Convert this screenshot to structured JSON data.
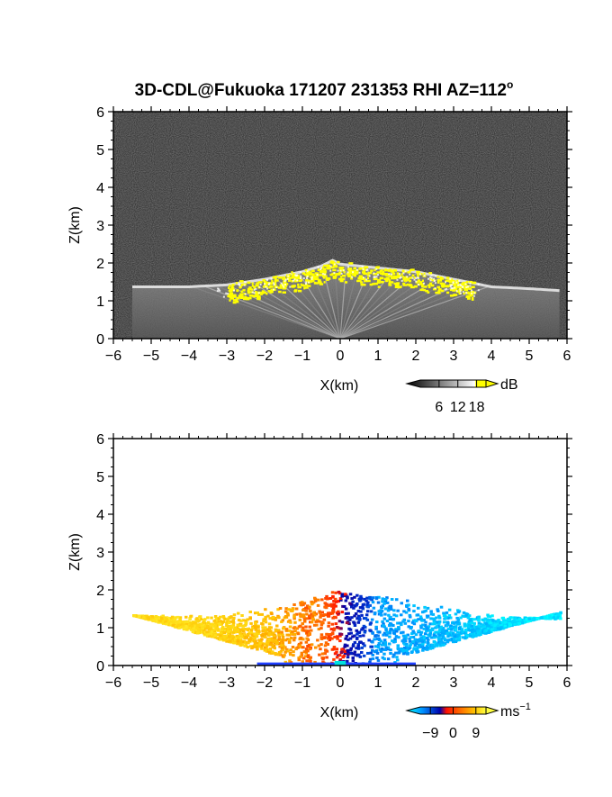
{
  "figure_title": "3D-CDL@Fukuoka 171207 231353 RHI AZ=112",
  "figure_title_sup": "o",
  "colors": {
    "background": "#ffffff",
    "echo_highlight": "#ffff00",
    "radial_positive": "#ffd21a",
    "radial_negative": "#1a4cff"
  },
  "chart_data": [
    {
      "type": "heatmap",
      "panel": "reflectivity",
      "xlabel": "X(km)",
      "ylabel": "Z(km)",
      "xlim": [
        -6,
        6
      ],
      "ylim": [
        0,
        6
      ],
      "x_ticks": [
        "-6",
        "-5",
        "-4",
        "-3",
        "-2",
        "-1",
        "0",
        "1",
        "2",
        "3",
        "4",
        "5",
        "6"
      ],
      "y_ticks": [
        "0",
        "1",
        "2",
        "3",
        "4",
        "5",
        "6"
      ],
      "background": "noise (dark grey)",
      "layer_top_profile": {
        "x": [
          -5.5,
          -4,
          -3,
          -2,
          -1,
          -0.5,
          -0.2,
          0,
          0.5,
          1,
          2,
          3,
          4,
          5,
          5.8
        ],
        "z": [
          1.4,
          1.4,
          1.45,
          1.6,
          1.8,
          1.95,
          2.1,
          2.0,
          1.95,
          1.9,
          1.8,
          1.6,
          1.4,
          1.35,
          1.3
        ]
      },
      "colorbar": {
        "unit": "dB",
        "ticks": [
          "6",
          "12",
          "18"
        ],
        "range": [
          0,
          21
        ],
        "colors": [
          "#000000",
          "#ffffff",
          "#ffff00"
        ]
      }
    },
    {
      "type": "heatmap",
      "panel": "radial_velocity",
      "xlabel": "X(km)",
      "ylabel": "Z(km)",
      "xlim": [
        -6,
        6
      ],
      "ylim": [
        0,
        6
      ],
      "x_ticks": [
        "-6",
        "-5",
        "-4",
        "-3",
        "-2",
        "-1",
        "0",
        "1",
        "2",
        "3",
        "4",
        "5",
        "6"
      ],
      "y_ticks": [
        "0",
        "1",
        "2",
        "3",
        "4",
        "5",
        "6"
      ],
      "velocity_profile": {
        "x": [
          -5.5,
          -4,
          -3,
          -2,
          -1,
          -0.5,
          0,
          0.5,
          1,
          2,
          3,
          4,
          5,
          5.8
        ],
        "v": [
          9,
          9,
          8,
          7,
          4,
          1,
          -1,
          -7,
          -8,
          -9,
          -10,
          -11,
          -12,
          -12
        ]
      },
      "colorbar": {
        "unit": "ms",
        "unit_sup": "−1",
        "ticks": [
          "−9",
          "0",
          "9"
        ],
        "range": [
          -13,
          13
        ],
        "colors": [
          "#00ffff",
          "#0055ff",
          "#0000aa",
          "#ff2000",
          "#ff7000",
          "#ffcc00",
          "#ffff40"
        ]
      }
    }
  ]
}
